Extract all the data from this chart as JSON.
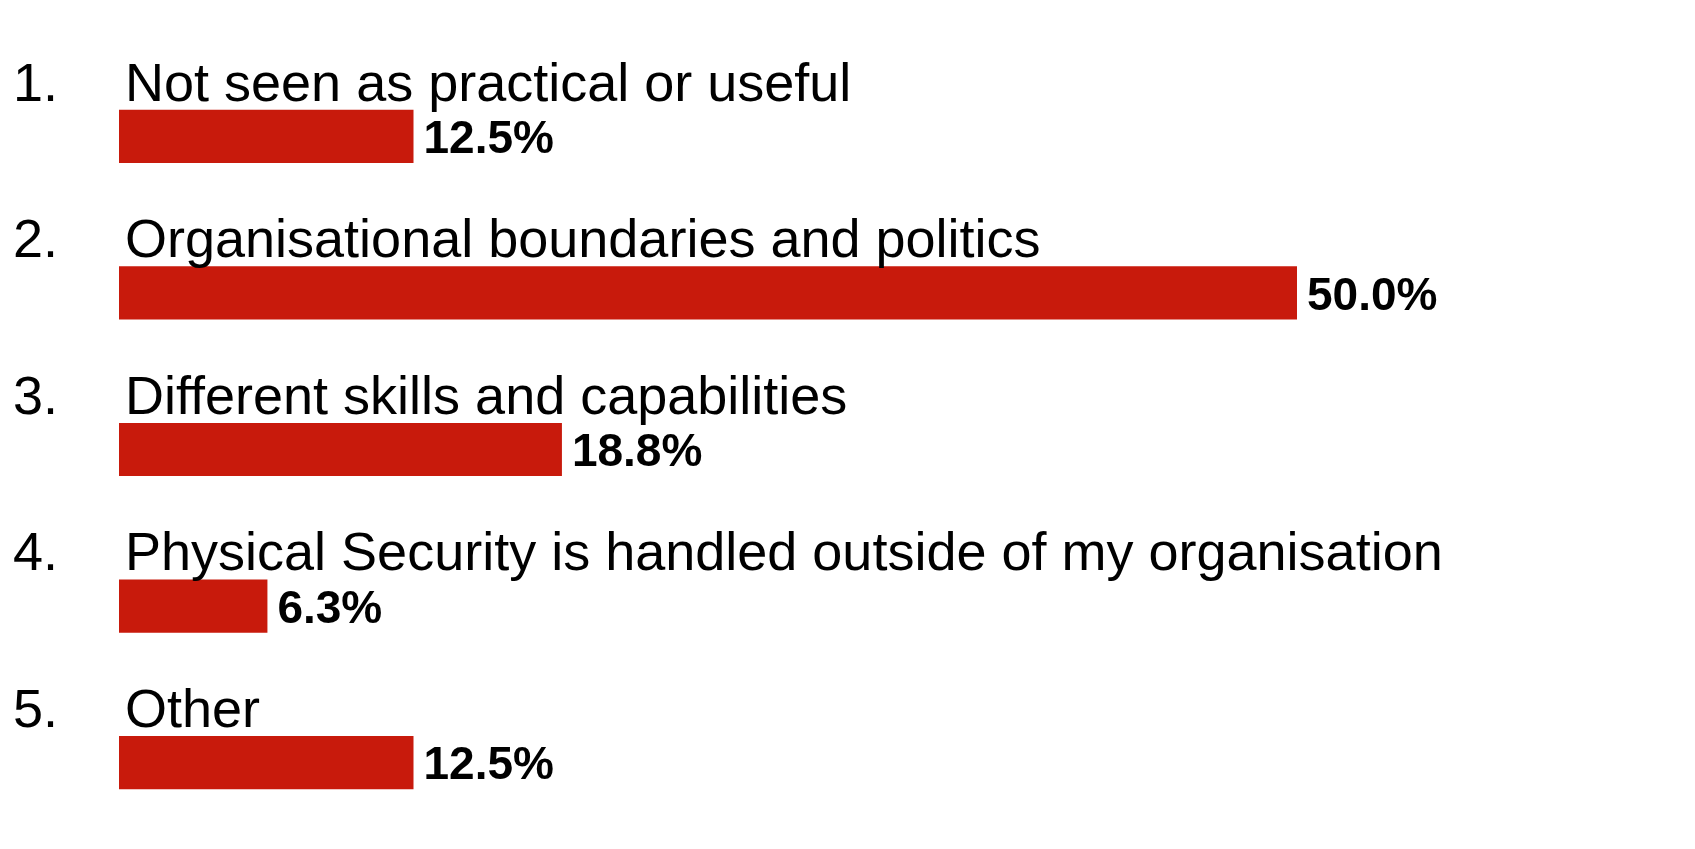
{
  "chart_data": {
    "type": "bar",
    "orientation": "horizontal",
    "categories": [
      "1.    Not seen as practical or useful",
      "2.    Organisational boundaries and politics",
      "3.    Different skills and capabilities",
      "4.    Physical Security is handled outside of my organisation",
      "5.    Other"
    ],
    "values": [
      12.5,
      50.0,
      18.8,
      6.3,
      12.5
    ],
    "value_labels": [
      "12.5%",
      "50.0%",
      "18.8%",
      "6.3%",
      "12.5%"
    ],
    "color": "#c81a0c"
  }
}
